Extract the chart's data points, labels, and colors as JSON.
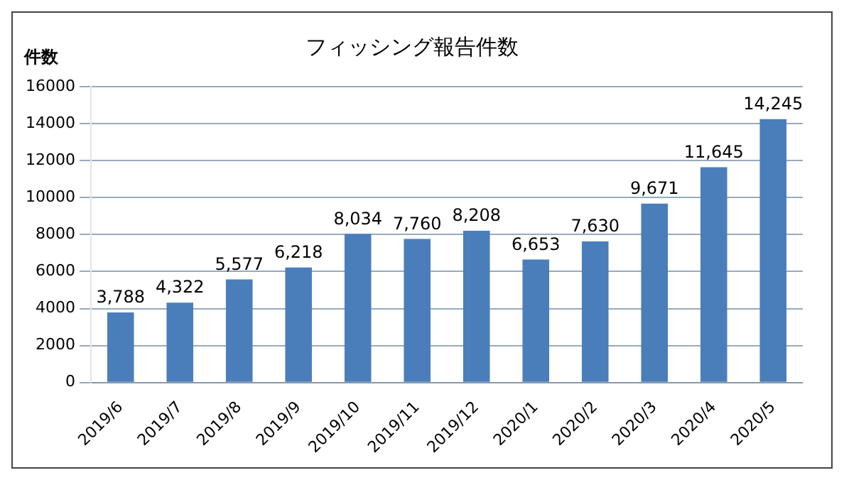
{
  "chart_data": {
    "type": "bar",
    "title": "フィッシング報告件数",
    "ylabel": "件数",
    "categories": [
      "2019/6",
      "2019/7",
      "2019/8",
      "2019/9",
      "2019/10",
      "2019/11",
      "2019/12",
      "2020/1",
      "2020/2",
      "2020/3",
      "2020/4",
      "2020/5"
    ],
    "values": [
      3788,
      4322,
      5577,
      6218,
      8034,
      7760,
      8208,
      6653,
      7630,
      9671,
      11645,
      14245
    ],
    "value_labels": [
      "3,788",
      "4,322",
      "5,577",
      "6,218",
      "8,034",
      "7,760",
      "8,208",
      "6,653",
      "7,630",
      "9,671",
      "11,645",
      "14,245"
    ],
    "color": "#4a7ebb",
    "ylim": [
      0,
      16000
    ],
    "yticks": [
      0,
      2000,
      4000,
      6000,
      8000,
      10000,
      12000,
      14000,
      16000
    ],
    "grid": "y"
  }
}
